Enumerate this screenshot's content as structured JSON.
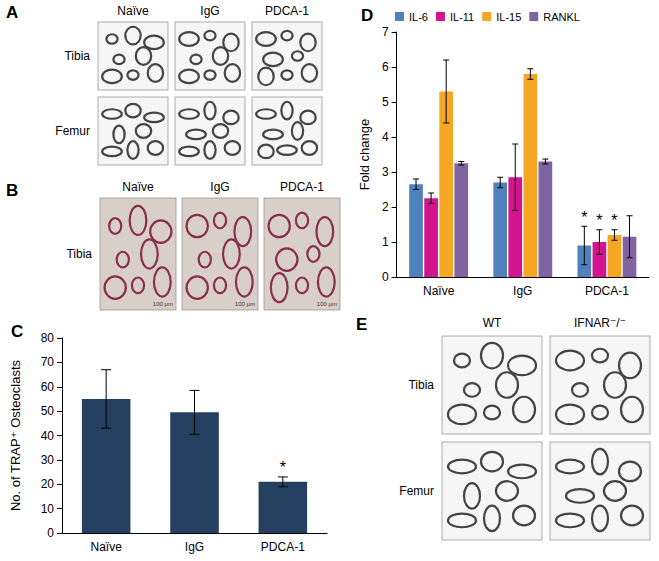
{
  "image_panels": [
    {
      "letter": "A",
      "columns": [
        "Naïve",
        "IgG",
        "PDCA-1"
      ],
      "rows": [
        "Tibia",
        "Femur"
      ]
    },
    {
      "letter": "B",
      "columns": [
        "Naïve",
        "IgG",
        "PDCA-1"
      ],
      "rows": [
        "Tibia"
      ],
      "scale_bar": "100 μm"
    },
    {
      "letter": "E",
      "columns": [
        "WT",
        "IFNAR⁻/⁻"
      ],
      "rows": [
        "Tibia",
        "Femur"
      ]
    }
  ],
  "chart_data": [
    {
      "panel": "C",
      "type": "bar",
      "y_label": "No. of TRAP⁺ Osteoclasts",
      "categories": [
        "Naïve",
        "IgG",
        "PDCA-1"
      ],
      "values": [
        55,
        49.5,
        21
      ],
      "errors": [
        12,
        9,
        2
      ],
      "annotations": [
        null,
        null,
        "*"
      ],
      "color": "#243f60",
      "ylim": [
        0,
        80
      ],
      "yticks": [
        0,
        10,
        20,
        30,
        40,
        50,
        60,
        70,
        80
      ],
      "grid": false
    },
    {
      "panel": "D",
      "type": "bar",
      "y_label": "Fold change",
      "categories": [
        "Naïve",
        "IgG",
        "PDCA-1"
      ],
      "series": [
        {
          "name": "IL-6",
          "color": "#4f81bd",
          "values": [
            2.65,
            2.7,
            0.9
          ],
          "errors": [
            0.15,
            0.15,
            0.55
          ],
          "annotations": [
            null,
            null,
            "*"
          ]
        },
        {
          "name": "IL-11",
          "color": "#d4148f",
          "values": [
            2.25,
            2.85,
            1.0
          ],
          "errors": [
            0.15,
            0.95,
            0.35
          ],
          "annotations": [
            null,
            null,
            "*"
          ]
        },
        {
          "name": "IL-15",
          "color": "#f5a623",
          "values": [
            5.3,
            5.8,
            1.2
          ],
          "errors": [
            0.9,
            0.15,
            0.15
          ],
          "annotations": [
            null,
            null,
            "*"
          ]
        },
        {
          "name": "RANKL",
          "color": "#8064a2",
          "values": [
            3.25,
            3.3,
            1.15
          ],
          "errors": [
            0.05,
            0.07,
            0.6
          ]
        }
      ],
      "ylim": [
        0,
        7
      ],
      "yticks": [
        0,
        1,
        2,
        3,
        4,
        5,
        6,
        7
      ],
      "legend": "top",
      "grid": false
    }
  ]
}
